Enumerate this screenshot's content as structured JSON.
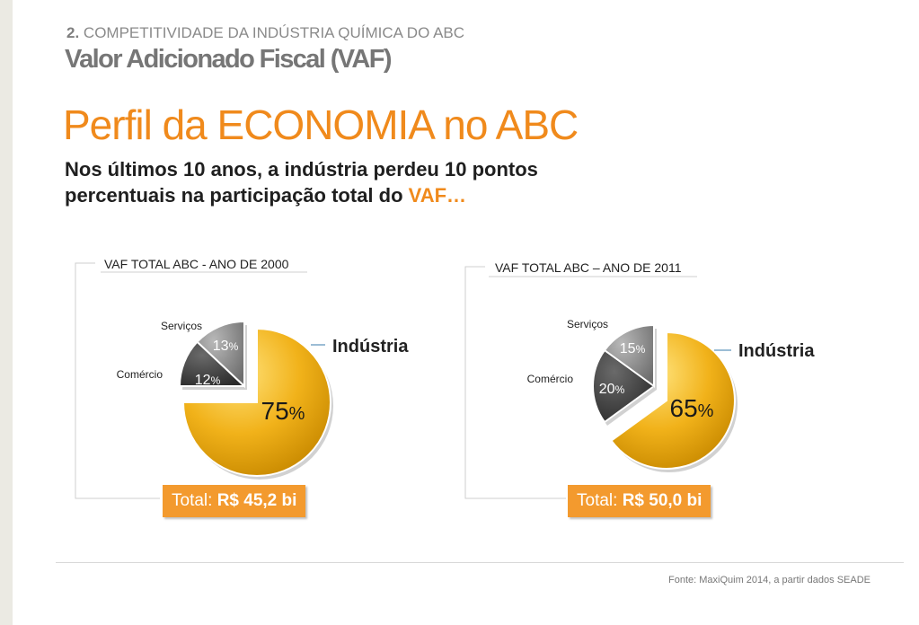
{
  "header": {
    "section_number": "2.",
    "section_title": "COMPETITIVIDADE DA INDÚSTRIA QUÍMICA DO ABC",
    "subtitle": "Valor Adicionado Fiscal (VAF)",
    "title": "Perfil da ECONOMIA no ABC",
    "lead_line1": "Nos últimos 10 anos, a indústria perdeu 10 pontos",
    "lead_line2": "percentuais na participação total do ",
    "lead_highlight": "VAF…"
  },
  "chart_data": [
    {
      "type": "pie",
      "title": "VAF TOTAL  ABC -  ANO DE 2000",
      "total_label": "Total: ",
      "total_value": "R$ 45,2 bi",
      "slices": [
        {
          "name": "Indústria",
          "value": 75,
          "label": "75",
          "color": "#f0b419"
        },
        {
          "name": "Comércio",
          "value": 12,
          "label": "12",
          "color": "#454545"
        },
        {
          "name": "Serviços",
          "value": 13,
          "label": "13",
          "color": "#8e8e8e"
        }
      ]
    },
    {
      "type": "pie",
      "title": "VAF TOTAL  ABC – ANO DE 2011",
      "total_label": "Total: ",
      "total_value": "R$ 50,0 bi",
      "slices": [
        {
          "name": "Indústria",
          "value": 65,
          "label": "65",
          "color": "#f0b419"
        },
        {
          "name": "Comércio",
          "value": 20,
          "label": "20",
          "color": "#454545"
        },
        {
          "name": "Serviços",
          "value": 15,
          "label": "15",
          "color": "#8e8e8e"
        }
      ]
    }
  ],
  "percent_sign": "%",
  "colors": {
    "accent": "#f08a1c",
    "total_box": "#f39a2e"
  },
  "footer": {
    "source": "Fonte: MaxiQuim 2014,  a partir dados SEADE"
  }
}
